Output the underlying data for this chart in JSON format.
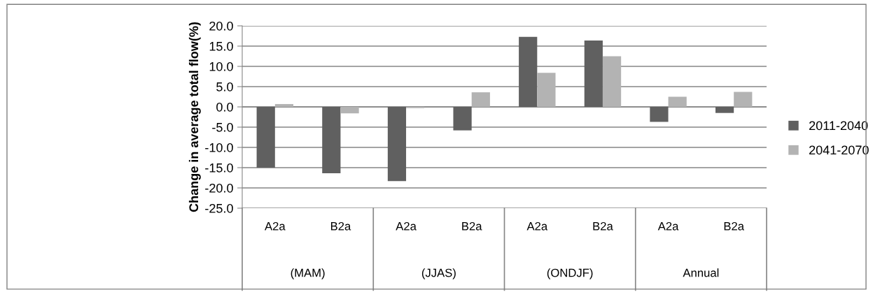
{
  "chart_data": {
    "type": "bar",
    "ylabel": "Change in average total flow(%)",
    "categories": [
      "A2a",
      "B2a",
      "A2a",
      "B2a",
      "A2a",
      "B2a",
      "A2a",
      "B2a"
    ],
    "annotations": [
      "(MAM)",
      "(JJAS)",
      "(ONDJF)",
      "Annual"
    ],
    "series": [
      {
        "name": "2011-2040",
        "color": "#606060",
        "values": [
          -15.0,
          -16.4,
          -18.3,
          -5.8,
          17.3,
          16.4,
          -3.7,
          -1.5
        ]
      },
      {
        "name": "2041-2070",
        "color": "#b3b3b3",
        "values": [
          0.7,
          -1.6,
          -0.3,
          3.6,
          8.4,
          12.5,
          2.5,
          3.7
        ]
      }
    ],
    "ylim": [
      -25,
      20
    ],
    "yticks": [
      {
        "value": -25,
        "label": "-25.0"
      },
      {
        "value": -20,
        "label": "-20.0"
      },
      {
        "value": -15,
        "label": "-15.0"
      },
      {
        "value": -10,
        "label": "-10.0"
      },
      {
        "value": -5,
        "label": "-5.0"
      },
      {
        "value": 0,
        "label": "0.0"
      },
      {
        "value": 5,
        "label": "5.0"
      },
      {
        "value": 10,
        "label": "10.0"
      },
      {
        "value": 15,
        "label": "15.0"
      },
      {
        "value": 20,
        "label": "20.0"
      }
    ],
    "grid": "y",
    "legend": "right"
  }
}
